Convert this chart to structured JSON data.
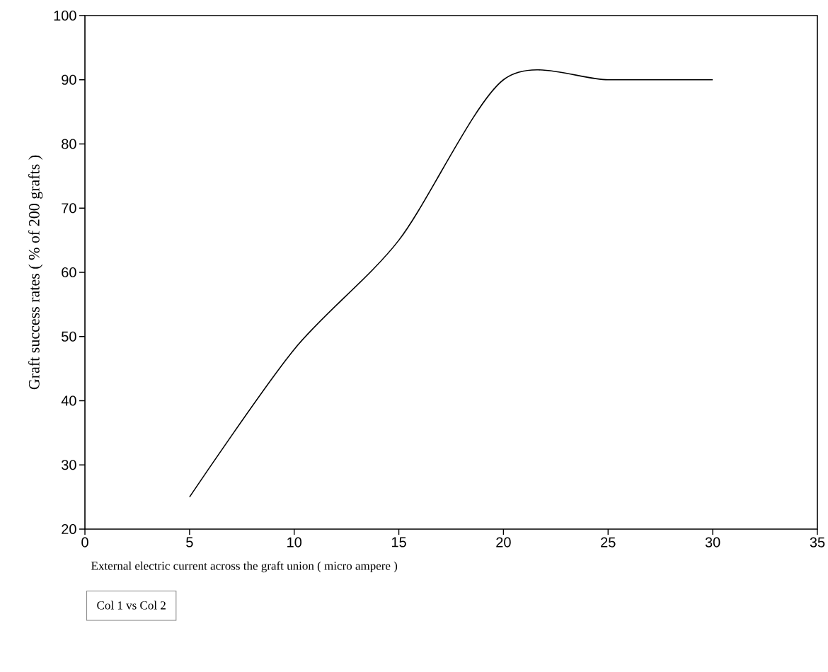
{
  "chart_data": {
    "type": "line",
    "xlabel": "External electric current across the graft union ( micro ampere )",
    "ylabel": "Graft success rates ( % of 200 grafts )",
    "x": [
      5,
      10,
      15,
      20,
      25,
      30
    ],
    "series": [
      {
        "name": "Col 1 vs Col 2",
        "color": "#000000",
        "values": [
          25,
          48,
          65,
          90,
          90,
          90
        ]
      }
    ],
    "xlim": [
      0,
      35
    ],
    "ylim": [
      20,
      100
    ],
    "xticks": [
      0,
      5,
      10,
      15,
      20,
      25,
      30,
      35
    ],
    "yticks": [
      20,
      30,
      40,
      50,
      60,
      70,
      80,
      90,
      100
    ],
    "grid": false,
    "legend": "bottom left",
    "marker": "none",
    "line_style": "solid"
  }
}
